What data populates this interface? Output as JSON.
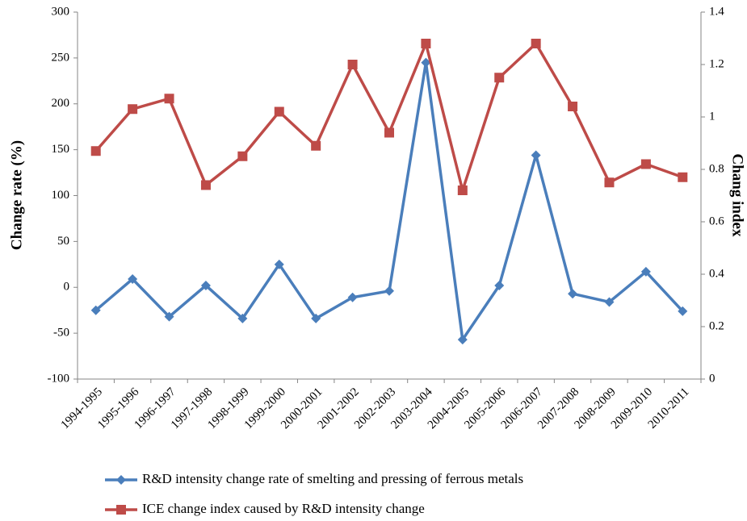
{
  "chart_data": {
    "type": "line",
    "ylabel": "Change rate (%)",
    "y2label": "Chang index",
    "categories": [
      "1994-1995",
      "1995-1996",
      "1996-1997",
      "1997-1998",
      "1998-1999",
      "1999-2000",
      "2000-2001",
      "2001-2002",
      "2002-2003",
      "2003-2004",
      "2004-2005",
      "2005-2006",
      "2006-2007",
      "2007-2008",
      "2008-2009",
      "2009-2010",
      "2010-2011"
    ],
    "series": [
      {
        "name": "R&D intensity change rate of smelting and pressing of ferrous metals",
        "color": "#4a7ebb",
        "marker": "diamond",
        "values": [
          -25,
          9,
          -32,
          2,
          -34,
          25,
          -34,
          -11,
          -4,
          245,
          -57,
          2,
          144,
          -7,
          -16,
          17,
          -26
        ]
      },
      {
        "name": "ICE change index caused by R&D intensity change",
        "color": "#be4b48",
        "marker": "square",
        "axis": "y2",
        "values": [
          0.87,
          1.03,
          1.07,
          0.74,
          0.85,
          1.02,
          0.89,
          1.2,
          0.94,
          1.28,
          0.72,
          1.15,
          1.28,
          1.04,
          0.75,
          0.82,
          0.77
        ]
      }
    ],
    "ylim": [
      -100,
      300
    ],
    "yticks": [
      -100,
      -50,
      0,
      50,
      100,
      150,
      200,
      250,
      300
    ],
    "y2lim": [
      0,
      1.4
    ],
    "y2ticks": [
      0,
      0.2,
      0.4,
      0.6,
      0.8,
      1,
      1.2,
      1.4
    ],
    "grid": false,
    "legend": "bottom"
  }
}
